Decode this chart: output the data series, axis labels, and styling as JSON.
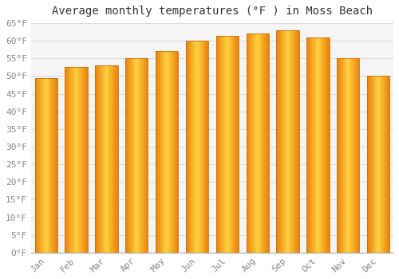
{
  "title": "Average monthly temperatures (°F ) in Moss Beach",
  "months": [
    "Jan",
    "Feb",
    "Mar",
    "Apr",
    "May",
    "Jun",
    "Jul",
    "Aug",
    "Sep",
    "Oct",
    "Nov",
    "Dec"
  ],
  "values": [
    49.5,
    52.5,
    53.0,
    55.0,
    57.0,
    60.0,
    61.5,
    62.0,
    63.0,
    61.0,
    55.0,
    50.0
  ],
  "bar_color_edge": "#E8820A",
  "bar_color_center": "#FFD040",
  "background_color": "#FFFFFF",
  "plot_bg_color": "#F5F5F5",
  "grid_color": "#DDDDDD",
  "ylim": [
    0,
    65
  ],
  "yticks": [
    0,
    5,
    10,
    15,
    20,
    25,
    30,
    35,
    40,
    45,
    50,
    55,
    60,
    65
  ],
  "title_fontsize": 10,
  "tick_fontsize": 8,
  "figsize": [
    5.0,
    3.5
  ],
  "dpi": 100
}
